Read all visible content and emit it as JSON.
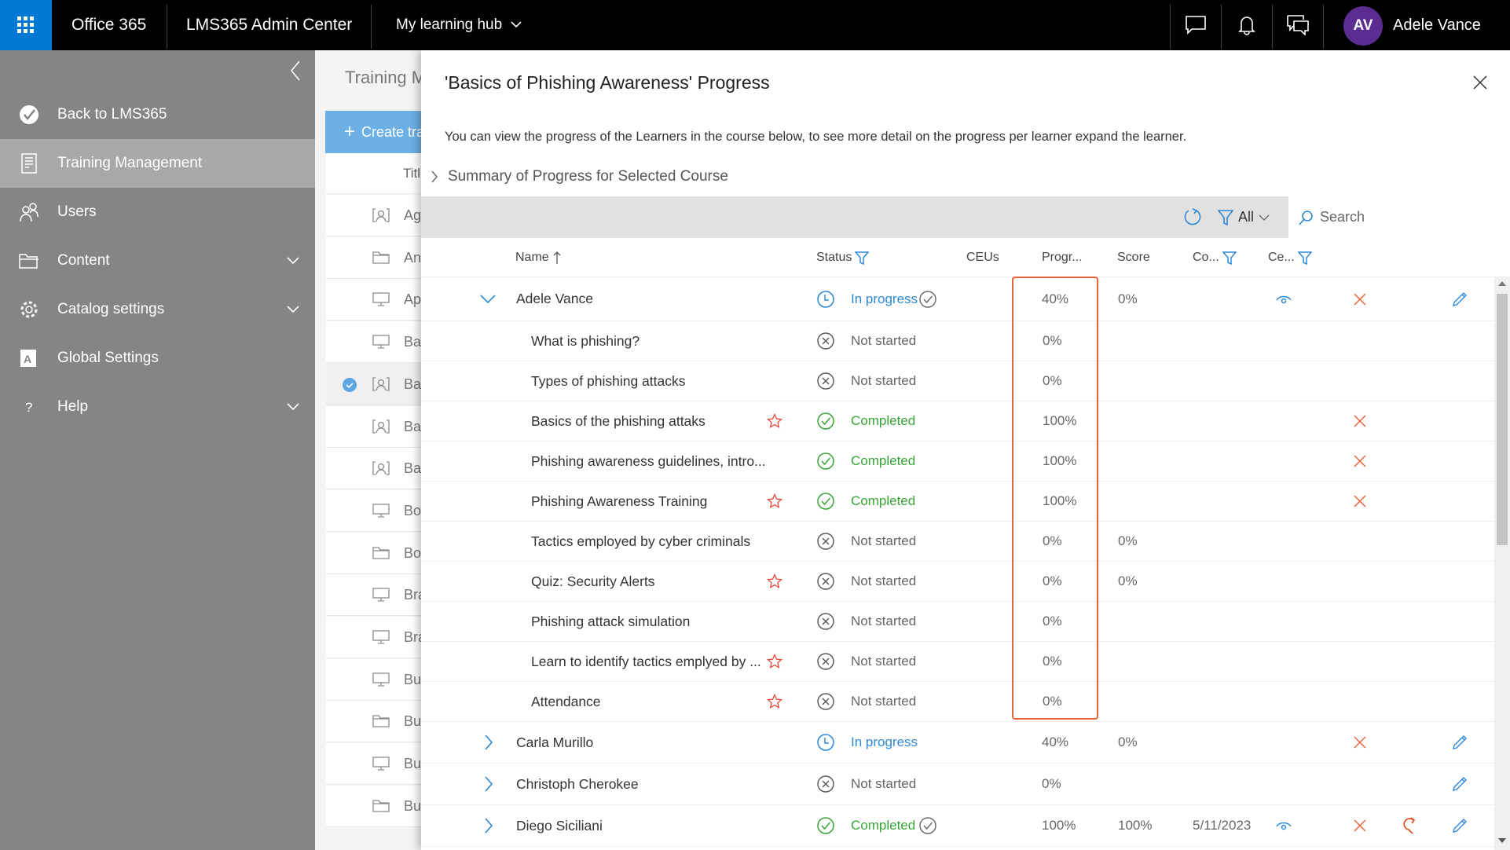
{
  "topbar": {
    "app_launcher_icon": "waffle-icon",
    "office": "Office 365",
    "admin_center": "LMS365 Admin Center",
    "hub": "My learning hub",
    "user_initials": "AV",
    "user_name": "Adele Vance",
    "avatar_color": "#5c2d91",
    "icons": [
      "chat-icon",
      "bell-icon",
      "feedback-icon"
    ]
  },
  "sidebar": {
    "items": [
      {
        "label": "Back to LMS365",
        "icon": "check-circle-icon"
      },
      {
        "label": "Training Management",
        "icon": "document-icon",
        "selected": true
      },
      {
        "label": "Users",
        "icon": "users-icon"
      },
      {
        "label": "Content",
        "icon": "folder-icon",
        "expandable": true
      },
      {
        "label": "Catalog settings",
        "icon": "gear-icon",
        "expandable": true
      },
      {
        "label": "Global Settings",
        "icon": "settings-a-icon"
      },
      {
        "label": "Help",
        "icon": "question-icon",
        "expandable": true
      }
    ]
  },
  "middle": {
    "title": "Training M",
    "create": "Create tra",
    "column": "Titl",
    "rows": [
      {
        "icon": "classroom",
        "t": "Ag"
      },
      {
        "icon": "folder",
        "t": "An"
      },
      {
        "icon": "monitor",
        "t": "Ap"
      },
      {
        "icon": "monitor",
        "t": "Ba:"
      },
      {
        "icon": "classroom",
        "t": "Ba:",
        "selected": true
      },
      {
        "icon": "classroom",
        "t": "Ba:"
      },
      {
        "icon": "classroom",
        "t": "Ba:"
      },
      {
        "icon": "monitor",
        "t": "Bo"
      },
      {
        "icon": "folder",
        "t": "Bo"
      },
      {
        "icon": "monitor",
        "t": "Bra"
      },
      {
        "icon": "monitor",
        "t": "Bra"
      },
      {
        "icon": "monitor",
        "t": "Bu"
      },
      {
        "icon": "folder",
        "t": "Bu"
      },
      {
        "icon": "monitor",
        "t": "Bu"
      },
      {
        "icon": "folder",
        "t": "Bu"
      }
    ]
  },
  "panel": {
    "title": "'Basics of Phishing Awareness' Progress",
    "description": "You can view the progress of the Learners in the course below, to see more detail on the progress per learner expand the learner.",
    "summary": "Summary of Progress for Selected Course",
    "filter_value": "All",
    "search_placeholder": "Search",
    "columns": {
      "name": "Name",
      "status": "Status",
      "ceus": "CEUs",
      "progress": "Progr...",
      "score": "Score",
      "completed": "Co...",
      "certificate": "Ce..."
    },
    "accent": "#2b88d8",
    "highlight": "#e8643a",
    "learners": [
      {
        "name": "Adele Vance",
        "expanded": true,
        "status": "In progress",
        "state": "progress",
        "approved": true,
        "progress": "40%",
        "score": "0%",
        "eye": true,
        "remove": true,
        "edit": true,
        "items": [
          {
            "name": "What is phishing?",
            "status": "Not started",
            "state": "none",
            "progress": "0%"
          },
          {
            "name": "Types of phishing attacks",
            "status": "Not started",
            "state": "none",
            "progress": "0%"
          },
          {
            "name": "Basics of the phishing attaks",
            "required": true,
            "status": "Completed",
            "state": "done",
            "progress": "100%",
            "remove": true
          },
          {
            "name": "Phishing awareness guidelines, intro...",
            "status": "Completed",
            "state": "done",
            "progress": "100%",
            "remove": true
          },
          {
            "name": "Phishing Awareness Training",
            "required": true,
            "status": "Completed",
            "state": "done",
            "progress": "100%",
            "remove": true
          },
          {
            "name": "Tactics employed by cyber criminals",
            "status": "Not started",
            "state": "none",
            "progress": "0%",
            "score": "0%"
          },
          {
            "name": "Quiz: Security Alerts",
            "required": true,
            "status": "Not started",
            "state": "none",
            "progress": "0%",
            "score": "0%"
          },
          {
            "name": "Phishing attack simulation",
            "status": "Not started",
            "state": "none",
            "progress": "0%"
          },
          {
            "name": "Learn to identify tactics emplyed by ...",
            "required": true,
            "status": "Not started",
            "state": "none",
            "progress": "0%"
          },
          {
            "name": "Attendance",
            "required": true,
            "status": "Not started",
            "state": "none",
            "progress": "0%"
          }
        ]
      },
      {
        "name": "Carla Murillo",
        "status": "In progress",
        "state": "progress",
        "progress": "40%",
        "score": "0%",
        "remove": true,
        "edit": true
      },
      {
        "name": "Christoph Cherokee",
        "status": "Not started",
        "state": "none",
        "progress": "0%",
        "edit": true
      },
      {
        "name": "Diego Siciliani",
        "status": "Completed",
        "state": "done",
        "approved": true,
        "progress": "100%",
        "score": "100%",
        "completed": "5/11/2023",
        "eye": true,
        "remove": true,
        "reset": true,
        "edit": true
      }
    ]
  }
}
